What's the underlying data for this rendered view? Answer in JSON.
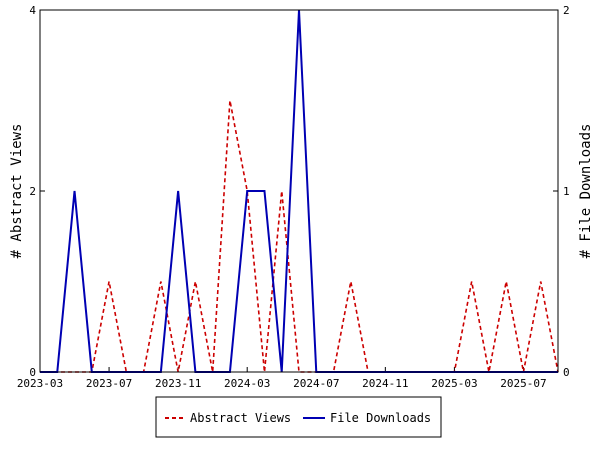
{
  "chart_data": {
    "type": "line",
    "x": [
      "2023-03",
      "2023-04",
      "2023-05",
      "2023-06",
      "2023-07",
      "2023-08",
      "2023-09",
      "2023-10",
      "2023-11",
      "2023-12",
      "2024-01",
      "2024-02",
      "2024-03",
      "2024-04",
      "2024-05",
      "2024-06",
      "2024-07",
      "2024-08",
      "2024-09",
      "2024-10",
      "2024-11",
      "2024-12",
      "2025-01",
      "2025-02",
      "2025-03",
      "2025-04",
      "2025-05",
      "2025-06",
      "2025-07",
      "2025-08",
      "2025-09"
    ],
    "x_ticks": [
      "2023-03",
      "2023-07",
      "2023-11",
      "2024-03",
      "2024-07",
      "2024-11",
      "2025-03",
      "2025-07"
    ],
    "series": [
      {
        "name": "Abstract Views",
        "axis": "left",
        "color": "#cc0000",
        "style": "dashed",
        "values": [
          0,
          0,
          0,
          0,
          1,
          0,
          0,
          1,
          0,
          1,
          0,
          3,
          2,
          0,
          2,
          0,
          0,
          0,
          1,
          0,
          0,
          0,
          0,
          0,
          0,
          1,
          0,
          1,
          0,
          1,
          0
        ]
      },
      {
        "name": "File Downloads",
        "axis": "right",
        "color": "#0000b3",
        "style": "solid",
        "values": [
          0,
          0,
          1,
          0,
          0,
          0,
          0,
          0,
          1,
          0,
          0,
          0,
          1,
          1,
          0,
          2,
          0,
          0,
          0,
          0,
          0,
          0,
          0,
          0,
          0,
          0,
          0,
          0,
          0,
          0,
          0
        ]
      }
    ],
    "y_left": {
      "label": "# Abstract Views",
      "ylim": [
        0,
        4
      ],
      "ticks": [
        "0",
        "2",
        "4"
      ]
    },
    "y_right": {
      "label": "# File Downloads",
      "ylim": [
        0,
        2
      ],
      "ticks": [
        "0",
        "1",
        "2"
      ]
    },
    "grid": false,
    "legend": {
      "position": "bottom",
      "entries": [
        "Abstract Views",
        "File Downloads"
      ]
    }
  }
}
